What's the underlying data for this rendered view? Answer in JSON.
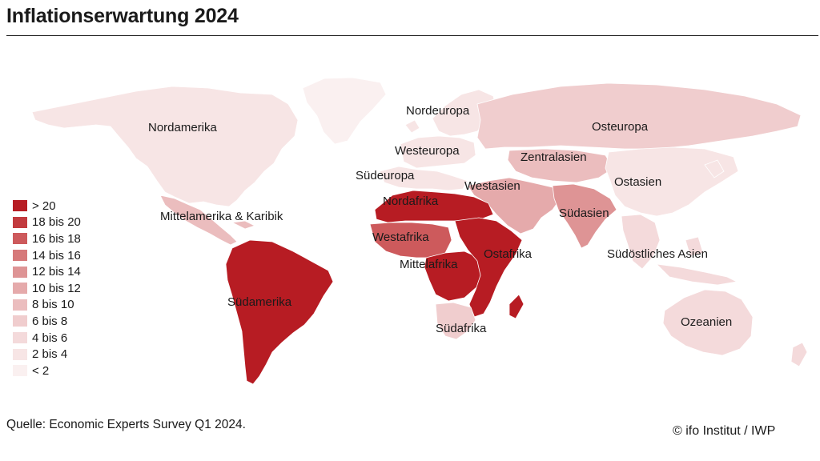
{
  "title": "Inflationserwartung 2024",
  "source": "Quelle: Economic Experts Survey Q1 2024.",
  "credit": "© ifo Institut / IWP",
  "legend": [
    {
      "label": "> 20",
      "color": "#b71c23"
    },
    {
      "label": "18 bis 20",
      "color": "#c23a3e"
    },
    {
      "label": "16 bis 18",
      "color": "#cd5a5c"
    },
    {
      "label": "14 bis 16",
      "color": "#d6797a"
    },
    {
      "label": "12 bis 14",
      "color": "#de9495"
    },
    {
      "label": "10 bis 12",
      "color": "#e5aaab"
    },
    {
      "label": "8 bis 10",
      "color": "#ebbdbe"
    },
    {
      "label": "6 bis 8",
      "color": "#f0cdce"
    },
    {
      "label": "4 bis 6",
      "color": "#f4dadb"
    },
    {
      "label": "2 bis 4",
      "color": "#f7e5e5"
    },
    {
      "label": "< 2",
      "color": "#faf0f0"
    }
  ],
  "regions": [
    {
      "name": "Nordamerika",
      "color": "#f7e5e5"
    },
    {
      "name": "Mittelamerika & Karibik",
      "color": "#ebbdbe"
    },
    {
      "name": "Südamerika",
      "color": "#b71c23"
    },
    {
      "name": "Nordeuropa",
      "color": "#f7e5e5"
    },
    {
      "name": "Westeuropa",
      "color": "#f7e5e5"
    },
    {
      "name": "Südeuropa",
      "color": "#f7e5e5"
    },
    {
      "name": "Osteuropa",
      "color": "#f0cdce"
    },
    {
      "name": "Zentralasien",
      "color": "#ebbdbe"
    },
    {
      "name": "Westasien",
      "color": "#e5aaab"
    },
    {
      "name": "Ostasien",
      "color": "#f7e5e5"
    },
    {
      "name": "Südasien",
      "color": "#de9495"
    },
    {
      "name": "Südöstliches Asien",
      "color": "#f4dadb"
    },
    {
      "name": "Ozeanien",
      "color": "#f4dadb"
    },
    {
      "name": "Nordafrika",
      "color": "#b71c23"
    },
    {
      "name": "Westafrika",
      "color": "#cd5a5c"
    },
    {
      "name": "Mittelafrika",
      "color": "#b71c23"
    },
    {
      "name": "Ostafrika",
      "color": "#b71c23"
    },
    {
      "name": "Südafrika",
      "color": "#f0cdce"
    }
  ]
}
